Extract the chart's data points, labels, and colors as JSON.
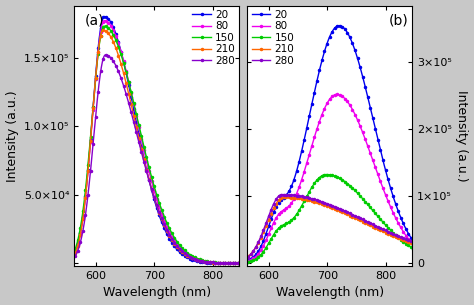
{
  "panel_a": {
    "label": "(a)",
    "xlabel": "Wavelength (nm)",
    "ylabel": "Intensity (a.u.)",
    "xlim": [
      563,
      845
    ],
    "ylim": [
      -2000,
      188000.0
    ],
    "yticks": [
      0,
      50000.0,
      100000.0,
      150000.0
    ],
    "ytick_labels": [
      "",
      "5.0×10⁴",
      "1.0×10⁵",
      "1.5×10⁵"
    ],
    "xticks": [
      600,
      700,
      800
    ],
    "curves": {
      "20": {
        "color": "#0000EE",
        "peak": 614,
        "peak_val": 180000.0,
        "sigma_l": 20,
        "sigma_r": 52
      },
      "80": {
        "color": "#EE00EE",
        "peak": 614,
        "peak_val": 177000.0,
        "sigma_l": 20,
        "sigma_r": 55
      },
      "150": {
        "color": "#00CC00",
        "peak": 614,
        "peak_val": 173000.0,
        "sigma_l": 21,
        "sigma_r": 57
      },
      "210": {
        "color": "#FF6600",
        "peak": 612,
        "peak_val": 170000.0,
        "sigma_l": 19,
        "sigma_r": 55
      },
      "280": {
        "color": "#8800CC",
        "peak": 616,
        "peak_val": 152000.0,
        "sigma_l": 20,
        "sigma_r": 55
      }
    },
    "start": 563
  },
  "panel_b": {
    "label": "(b)",
    "xlabel": "Wavelength (nm)",
    "ylabel": "Intensity (a.u.)",
    "xlim": [
      563,
      845
    ],
    "ylim": [
      -5000,
      385000.0
    ],
    "yticks": [
      0,
      100000.0,
      200000.0,
      300000.0
    ],
    "ytick_labels": [
      "0",
      "1×10⁵",
      "2×10⁵",
      "3×10⁵"
    ],
    "xticks": [
      600,
      700,
      800
    ],
    "curves": {
      "20": {
        "color": "#0000EE",
        "main_peak": 720,
        "main_val": 355000.0,
        "sigma_l": 52,
        "sigma_r": 58,
        "shoulder_peak": 612,
        "shoulder_val": 42000.0,
        "shoulder_sigma": 16
      },
      "80": {
        "color": "#EE00EE",
        "main_peak": 716,
        "main_val": 252000.0,
        "sigma_l": 50,
        "sigma_r": 62,
        "shoulder_peak": 614,
        "shoulder_val": 38000.0,
        "shoulder_sigma": 17
      },
      "150": {
        "color": "#00CC00",
        "main_peak": 698,
        "main_val": 132000.0,
        "sigma_l": 44,
        "sigma_r": 78,
        "shoulder_peak": 615,
        "shoulder_val": 28000.0,
        "shoulder_sigma": 17
      },
      "210": {
        "color": "#FF6600",
        "main_peak": 625,
        "main_val": 98000.0,
        "sigma_l": 28,
        "sigma_r": 140,
        "shoulder_peak": 615,
        "shoulder_val": 0,
        "shoulder_sigma": 15
      },
      "280": {
        "color": "#8800CC",
        "main_peak": 622,
        "main_val": 102000.0,
        "sigma_l": 26,
        "sigma_r": 145,
        "shoulder_peak": 614,
        "shoulder_val": 0,
        "shoulder_sigma": 15
      }
    },
    "start": 563
  },
  "temperatures": [
    "20",
    "80",
    "150",
    "210",
    "280"
  ],
  "marker": "o",
  "markersize": 1.5,
  "markevery": 12,
  "linewidth": 1.0,
  "bg_color": "#c8c8c8",
  "plot_bg": "#ffffff",
  "font_size": 9
}
